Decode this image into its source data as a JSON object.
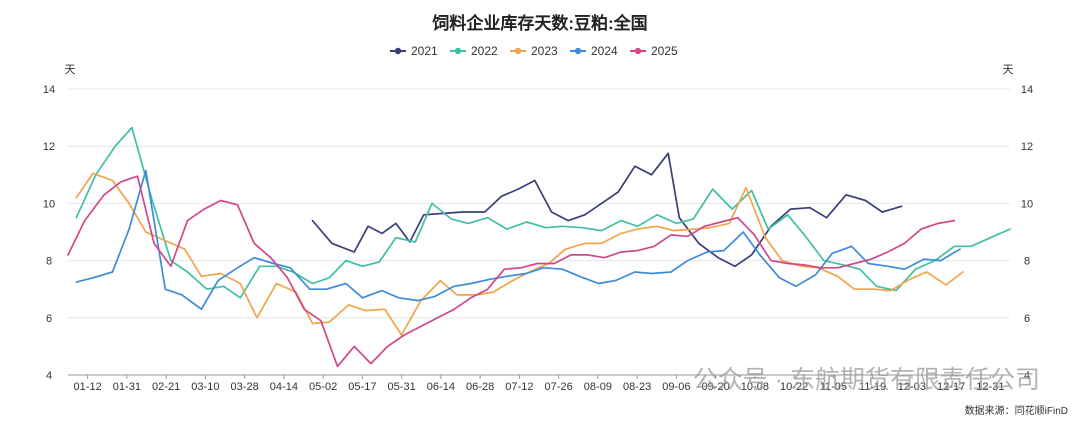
{
  "chart_data": {
    "type": "line",
    "title": "饲料企业库存天数:豆粕:全国",
    "left_unit": "天",
    "right_unit": "天",
    "ylim": [
      4,
      14
    ],
    "yticks": [
      4,
      6,
      8,
      10,
      12,
      14
    ],
    "grid": "horizontal",
    "legend_position": "top-center",
    "categories": [
      "01-12",
      "01-31",
      "02-21",
      "03-10",
      "03-28",
      "04-14",
      "05-02",
      "05-17",
      "05-31",
      "06-14",
      "06-28",
      "07-12",
      "07-26",
      "08-09",
      "08-23",
      "09-06",
      "09-20",
      "10-08",
      "10-22",
      "11-05",
      "11-19",
      "12-03",
      "12-17",
      "12-31"
    ],
    "series": [
      {
        "name": "2021",
        "color": "#3a3f7a",
        "points": [
          [
            8.8,
            9.4
          ],
          [
            9.5,
            8.6
          ],
          [
            10.3,
            8.3
          ],
          [
            10.8,
            9.2
          ],
          [
            11.3,
            8.95
          ],
          [
            11.8,
            9.3
          ],
          [
            12.3,
            8.65
          ],
          [
            12.8,
            9.6
          ],
          [
            13.5,
            9.65
          ],
          [
            14.2,
            9.7
          ],
          [
            15.0,
            9.7
          ],
          [
            15.6,
            10.25
          ],
          [
            16.2,
            10.5
          ],
          [
            16.8,
            10.8
          ],
          [
            17.4,
            9.7
          ],
          [
            18.0,
            9.4
          ],
          [
            18.6,
            9.6
          ],
          [
            19.2,
            10.0
          ],
          [
            19.8,
            10.4
          ],
          [
            20.4,
            11.3
          ],
          [
            21.0,
            11.0
          ],
          [
            21.6,
            11.75
          ],
          [
            22.0,
            9.5
          ],
          [
            22.7,
            8.6
          ],
          [
            23.4,
            8.1
          ],
          [
            24.0,
            7.8
          ],
          [
            24.6,
            8.2
          ],
          [
            25.3,
            9.2
          ],
          [
            26.0,
            9.8
          ],
          [
            26.7,
            9.85
          ],
          [
            27.3,
            9.5
          ],
          [
            28.0,
            10.3
          ],
          [
            28.7,
            10.1
          ],
          [
            29.3,
            9.7
          ],
          [
            30.0,
            9.9
          ]
        ]
      },
      {
        "name": "2022",
        "color": "#3fbfa6",
        "points": [
          [
            0.3,
            9.5
          ],
          [
            1.0,
            11.0
          ],
          [
            1.7,
            12.0
          ],
          [
            2.3,
            12.65
          ],
          [
            3.0,
            10.2
          ],
          [
            3.7,
            8.0
          ],
          [
            4.3,
            7.6
          ],
          [
            5.0,
            7.0
          ],
          [
            5.6,
            7.1
          ],
          [
            6.2,
            6.7
          ],
          [
            6.9,
            7.8
          ],
          [
            7.5,
            7.8
          ],
          [
            8.1,
            7.6
          ],
          [
            8.8,
            7.2
          ],
          [
            9.4,
            7.4
          ],
          [
            10.0,
            8.0
          ],
          [
            10.6,
            7.8
          ],
          [
            11.2,
            7.95
          ],
          [
            11.8,
            8.8
          ],
          [
            12.5,
            8.65
          ],
          [
            13.1,
            10.0
          ],
          [
            13.8,
            9.45
          ],
          [
            14.4,
            9.3
          ],
          [
            15.1,
            9.5
          ],
          [
            15.8,
            9.1
          ],
          [
            16.5,
            9.35
          ],
          [
            17.2,
            9.15
          ],
          [
            17.8,
            9.2
          ],
          [
            18.5,
            9.15
          ],
          [
            19.2,
            9.05
          ],
          [
            19.9,
            9.4
          ],
          [
            20.5,
            9.2
          ],
          [
            21.2,
            9.6
          ],
          [
            21.9,
            9.3
          ],
          [
            22.5,
            9.45
          ],
          [
            23.2,
            10.5
          ],
          [
            23.9,
            9.8
          ],
          [
            24.6,
            10.45
          ],
          [
            25.2,
            9.1
          ],
          [
            25.9,
            9.6
          ],
          [
            26.5,
            8.9
          ],
          [
            27.2,
            8.0
          ],
          [
            27.9,
            7.85
          ],
          [
            28.5,
            7.7
          ],
          [
            29.1,
            7.1
          ],
          [
            29.8,
            6.95
          ],
          [
            30.5,
            7.7
          ],
          [
            31.2,
            8.0
          ],
          [
            31.9,
            8.5
          ],
          [
            32.5,
            8.5
          ],
          [
            33.2,
            8.8
          ],
          [
            33.9,
            9.1
          ]
        ]
      },
      {
        "name": "2023",
        "color": "#f0a44c",
        "points": [
          [
            0.3,
            10.2
          ],
          [
            0.9,
            11.05
          ],
          [
            1.6,
            10.8
          ],
          [
            2.2,
            10.0
          ],
          [
            2.8,
            9.0
          ],
          [
            3.5,
            8.7
          ],
          [
            4.2,
            8.4
          ],
          [
            4.8,
            7.45
          ],
          [
            5.5,
            7.55
          ],
          [
            6.2,
            7.2
          ],
          [
            6.8,
            6.0
          ],
          [
            7.5,
            7.2
          ],
          [
            8.2,
            6.9
          ],
          [
            8.8,
            5.8
          ],
          [
            9.4,
            5.85
          ],
          [
            10.1,
            6.45
          ],
          [
            10.7,
            6.25
          ],
          [
            11.4,
            6.3
          ],
          [
            12.0,
            5.4
          ],
          [
            12.7,
            6.6
          ],
          [
            13.4,
            7.3
          ],
          [
            14.0,
            6.8
          ],
          [
            14.7,
            6.8
          ],
          [
            15.3,
            6.9
          ],
          [
            16.0,
            7.3
          ],
          [
            16.6,
            7.6
          ],
          [
            17.3,
            7.9
          ],
          [
            17.9,
            8.4
          ],
          [
            18.6,
            8.6
          ],
          [
            19.2,
            8.6
          ],
          [
            19.9,
            8.95
          ],
          [
            20.5,
            9.1
          ],
          [
            21.2,
            9.2
          ],
          [
            21.8,
            9.05
          ],
          [
            22.5,
            9.1
          ],
          [
            23.1,
            9.15
          ],
          [
            23.8,
            9.3
          ],
          [
            24.4,
            10.55
          ],
          [
            25.1,
            8.8
          ],
          [
            25.7,
            8.0
          ],
          [
            26.4,
            7.8
          ],
          [
            27.0,
            7.75
          ],
          [
            27.7,
            7.45
          ],
          [
            28.3,
            7.0
          ],
          [
            29.0,
            7.0
          ],
          [
            29.6,
            6.95
          ],
          [
            30.3,
            7.35
          ],
          [
            30.9,
            7.6
          ],
          [
            31.6,
            7.15
          ],
          [
            32.2,
            7.6
          ]
        ]
      },
      {
        "name": "2024",
        "color": "#3e8bd6",
        "points": [
          [
            0.3,
            7.25
          ],
          [
            0.9,
            7.4
          ],
          [
            1.6,
            7.6
          ],
          [
            2.2,
            9.1
          ],
          [
            2.8,
            11.15
          ],
          [
            3.5,
            7.0
          ],
          [
            4.1,
            6.8
          ],
          [
            4.8,
            6.3
          ],
          [
            5.4,
            7.3
          ],
          [
            6.1,
            7.75
          ],
          [
            6.7,
            8.1
          ],
          [
            7.4,
            7.9
          ],
          [
            8.0,
            7.75
          ],
          [
            8.7,
            7.0
          ],
          [
            9.3,
            7.0
          ],
          [
            10.0,
            7.2
          ],
          [
            10.6,
            6.7
          ],
          [
            11.3,
            6.95
          ],
          [
            11.9,
            6.7
          ],
          [
            12.6,
            6.6
          ],
          [
            13.2,
            6.75
          ],
          [
            13.9,
            7.1
          ],
          [
            14.5,
            7.2
          ],
          [
            15.2,
            7.35
          ],
          [
            15.8,
            7.45
          ],
          [
            16.5,
            7.55
          ],
          [
            17.1,
            7.75
          ],
          [
            17.8,
            7.7
          ],
          [
            18.4,
            7.45
          ],
          [
            19.1,
            7.2
          ],
          [
            19.7,
            7.3
          ],
          [
            20.4,
            7.6
          ],
          [
            21.0,
            7.55
          ],
          [
            21.7,
            7.6
          ],
          [
            22.3,
            8.0
          ],
          [
            23.0,
            8.3
          ],
          [
            23.6,
            8.35
          ],
          [
            24.3,
            9.0
          ],
          [
            24.9,
            8.2
          ],
          [
            25.6,
            7.4
          ],
          [
            26.2,
            7.1
          ],
          [
            26.9,
            7.5
          ],
          [
            27.5,
            8.25
          ],
          [
            28.2,
            8.5
          ],
          [
            28.8,
            7.9
          ],
          [
            29.5,
            7.8
          ],
          [
            30.1,
            7.7
          ],
          [
            30.8,
            8.05
          ],
          [
            31.4,
            8.0
          ],
          [
            32.1,
            8.4
          ]
        ]
      },
      {
        "name": "2025",
        "color": "#d2478a",
        "points": [
          [
            0.0,
            8.2
          ],
          [
            0.6,
            9.4
          ],
          [
            1.3,
            10.3
          ],
          [
            1.9,
            10.75
          ],
          [
            2.5,
            10.95
          ],
          [
            3.1,
            8.6
          ],
          [
            3.7,
            7.8
          ],
          [
            4.3,
            9.4
          ],
          [
            4.9,
            9.8
          ],
          [
            5.5,
            10.1
          ],
          [
            6.1,
            9.95
          ],
          [
            6.7,
            8.6
          ],
          [
            7.3,
            8.1
          ],
          [
            7.9,
            7.4
          ],
          [
            8.5,
            6.3
          ],
          [
            9.1,
            5.9
          ],
          [
            9.7,
            4.3
          ],
          [
            10.3,
            5.0
          ],
          [
            10.9,
            4.4
          ],
          [
            11.5,
            5.0
          ],
          [
            12.1,
            5.4
          ],
          [
            12.7,
            5.7
          ],
          [
            13.3,
            6.0
          ],
          [
            13.9,
            6.3
          ],
          [
            14.5,
            6.7
          ],
          [
            15.1,
            7.0
          ],
          [
            15.7,
            7.7
          ],
          [
            16.3,
            7.75
          ],
          [
            16.9,
            7.9
          ],
          [
            17.5,
            7.9
          ],
          [
            18.1,
            8.2
          ],
          [
            18.7,
            8.2
          ],
          [
            19.3,
            8.1
          ],
          [
            19.9,
            8.3
          ],
          [
            20.5,
            8.35
          ],
          [
            21.1,
            8.5
          ],
          [
            21.7,
            8.9
          ],
          [
            22.3,
            8.85
          ],
          [
            22.9,
            9.2
          ],
          [
            23.5,
            9.35
          ],
          [
            24.1,
            9.5
          ],
          [
            24.7,
            8.9
          ],
          [
            25.3,
            8.0
          ],
          [
            25.9,
            7.9
          ],
          [
            26.5,
            7.85
          ],
          [
            27.1,
            7.75
          ],
          [
            27.7,
            7.75
          ],
          [
            28.3,
            7.9
          ],
          [
            28.9,
            8.05
          ],
          [
            29.5,
            8.3
          ],
          [
            30.1,
            8.6
          ],
          [
            30.7,
            9.1
          ],
          [
            31.3,
            9.3
          ],
          [
            31.9,
            9.4
          ]
        ]
      }
    ]
  },
  "watermark": "公众号 · 东航期货有限责任公司",
  "source": "数据来源：同花顺iFinD"
}
